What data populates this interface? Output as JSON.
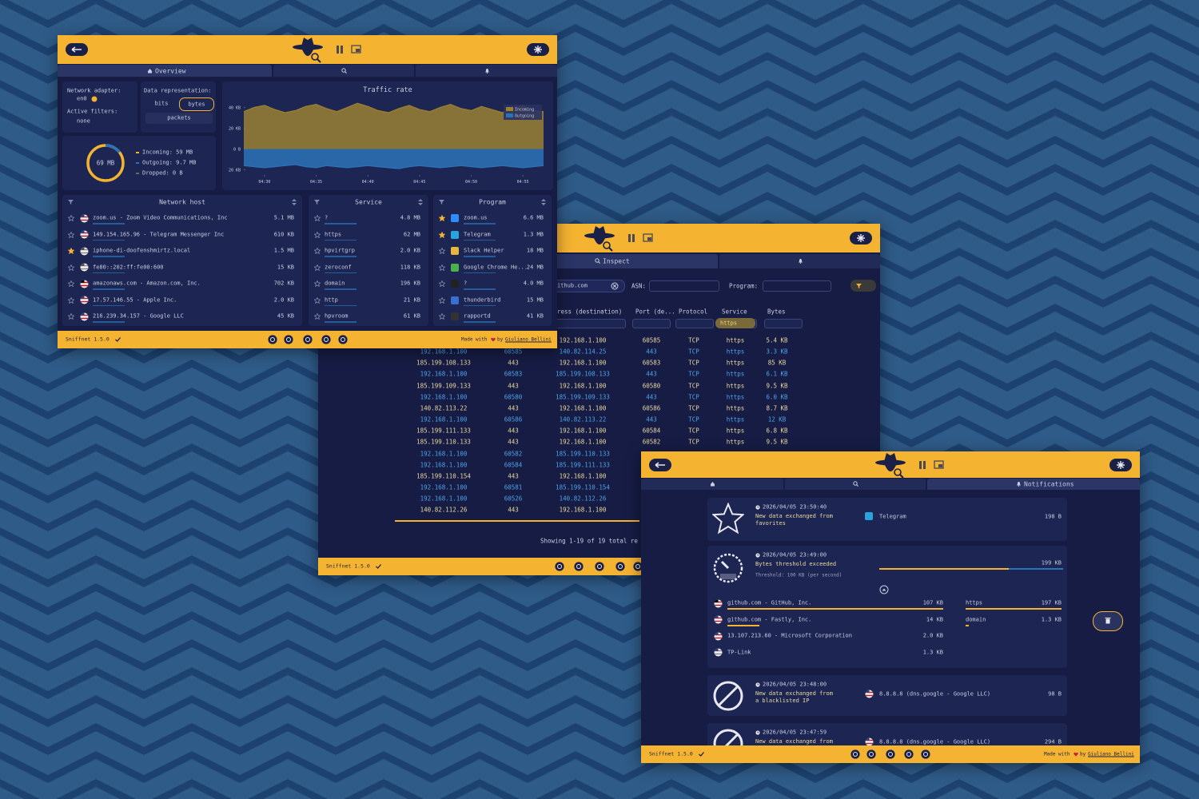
{
  "chart_data": {
    "type": "area",
    "title": "Traffic rate",
    "x": [
      268,
      269,
      270,
      271,
      272,
      273,
      274,
      275,
      276,
      277,
      278,
      279,
      280,
      281,
      282,
      283,
      284,
      285,
      286,
      287,
      288,
      289,
      290,
      291,
      292,
      293,
      294,
      295,
      296,
      297
    ],
    "xlim": [
      268,
      297
    ],
    "xticks": [
      {
        "value": 270,
        "label": "04:30"
      },
      {
        "value": 275,
        "label": "04:35"
      },
      {
        "value": 280,
        "label": "04:40"
      },
      {
        "value": 285,
        "label": "04:45"
      },
      {
        "value": 290,
        "label": "04:50"
      },
      {
        "value": 295,
        "label": "04:55"
      }
    ],
    "ylim": [
      -25,
      45
    ],
    "yticks": [
      {
        "value": 40,
        "label": "40 KB"
      },
      {
        "value": 20,
        "label": "20 KB"
      },
      {
        "value": 0,
        "label": "0 B"
      },
      {
        "value": -20,
        "label": "20 KB"
      }
    ],
    "legend": "upper right",
    "series": [
      {
        "name": "Incoming",
        "color": "#9a8132",
        "values": [
          36,
          40,
          42,
          38,
          35,
          37,
          41,
          43,
          39,
          36,
          40,
          44,
          41,
          37,
          35,
          39,
          42,
          38,
          36,
          40,
          43,
          39,
          37,
          41,
          38,
          35,
          39,
          42,
          37,
          36
        ]
      },
      {
        "name": "Outgoing",
        "color": "#2b73b8",
        "values": [
          -16,
          -17,
          -18,
          -17,
          -16,
          -15,
          -17,
          -18,
          -16,
          -17,
          -18,
          -17,
          -16,
          -17,
          -18,
          -19,
          -17,
          -16,
          -17,
          -18,
          -17,
          -16,
          -17,
          -18,
          -17,
          -16,
          -17,
          -18,
          -17,
          -16
        ]
      }
    ]
  },
  "overview": {
    "tab": "Overview",
    "adapter_label": "Network adapter:",
    "adapter": "en0",
    "filters_label": "Active filters:",
    "filters": "none",
    "representation_label": "Data representation:",
    "representation": [
      "bits",
      "bytes",
      "packets"
    ],
    "total": "69 MB",
    "totals": [
      "Incoming: 59 MB",
      "Outgoing: 9.7 MB",
      "Dropped: 0 B"
    ],
    "tables": [
      {
        "header": "Network host",
        "rows": [
          {
            "name": "zoom.us - Zoom Video Communications, Inc",
            "value": "5.1 MB"
          },
          {
            "name": "149.154.165.96 - Telegram Messenger Inc",
            "value": "610 KB"
          },
          {
            "name": "iphone-di-doofenshmirtz.local",
            "value": "1.5 MB",
            "favorite": true
          },
          {
            "name": "fe80::202:ff:fe00:600",
            "value": "15 KB"
          },
          {
            "name": "amazonaws.com - Amazon.com, Inc.",
            "value": "702 KB"
          },
          {
            "name": "17.57.146.55 - Apple Inc.",
            "value": "2.0 KB"
          },
          {
            "name": "216.239.34.157 - Google LLC",
            "value": "45 KB"
          }
        ]
      },
      {
        "header": "Service",
        "rows": [
          {
            "name": "?",
            "value": "4.8 MB"
          },
          {
            "name": "https",
            "value": "62 MB"
          },
          {
            "name": "hpvirtgrp",
            "value": "2.0 KB"
          },
          {
            "name": "zeroconf",
            "value": "118 KB"
          },
          {
            "name": "domain",
            "value": "196 KB"
          },
          {
            "name": "http",
            "value": "21 KB"
          },
          {
            "name": "hpvroom",
            "value": "61 KB"
          }
        ]
      },
      {
        "header": "Program",
        "rows": [
          {
            "name": "zoom.us",
            "value": "6.6 MB",
            "favorite": true
          },
          {
            "name": "Telegram",
            "value": "1.3 MB",
            "favorite": true
          },
          {
            "name": "Slack Helper",
            "value": "18 MB"
          },
          {
            "name": "Google Chrome He...",
            "value": "24 MB"
          },
          {
            "name": "?",
            "value": "4.0 MB"
          },
          {
            "name": "thunderbird",
            "value": "15 MB"
          },
          {
            "name": "rapportd",
            "value": "41 KB"
          }
        ]
      }
    ],
    "footer": {
      "version": "Sniffnet 1.5.0",
      "made_with": "Made with",
      "by": "by",
      "author": "Giuliano Bellini"
    }
  },
  "inspect": {
    "tab": "Inspect",
    "search": "ithub.com",
    "asn_label": "ASN:",
    "program_label": "Program:",
    "columns": [
      "ress (destination)",
      "Port (de...",
      "Protocol",
      "Service",
      "Bytes"
    ],
    "service_filter": "https",
    "rows": [
      [
        null,
        null,
        "192.168.1.100",
        "60585",
        "TCP",
        "https",
        "5.4 KB"
      ],
      [
        "192.168.1.100",
        "60585",
        "140.82.114.25",
        "443",
        "TCP",
        "https",
        "3.3 KB"
      ],
      [
        "185.199.108.133",
        "443",
        "192.168.1.100",
        "60583",
        "TCP",
        "https",
        "85 KB"
      ],
      [
        "192.168.1.100",
        "60583",
        "185.199.108.133",
        "443",
        "TCP",
        "https",
        "6.1 KB"
      ],
      [
        "185.199.109.133",
        "443",
        "192.168.1.100",
        "60580",
        "TCP",
        "https",
        "9.5 KB"
      ],
      [
        "192.168.1.100",
        "60580",
        "185.199.109.133",
        "443",
        "TCP",
        "https",
        "6.0 KB"
      ],
      [
        "140.82.113.22",
        "443",
        "192.168.1.100",
        "60586",
        "TCP",
        "https",
        "8.7 KB"
      ],
      [
        "192.168.1.100",
        "60586",
        "140.82.113.22",
        "443",
        "TCP",
        "https",
        "12 KB"
      ],
      [
        "185.199.111.133",
        "443",
        "192.168.1.100",
        "60584",
        "TCP",
        "https",
        "6.8 KB"
      ],
      [
        "185.199.110.133",
        "443",
        "192.168.1.100",
        "60582",
        "TCP",
        "https",
        "9.5 KB"
      ],
      [
        "192.168.1.100",
        "60582",
        "185.199.110.133",
        null,
        null,
        null,
        null
      ],
      [
        "192.168.1.100",
        "60584",
        "185.199.111.133",
        null,
        null,
        null,
        null
      ],
      [
        "185.199.110.154",
        "443",
        "192.168.1.100",
        null,
        null,
        null,
        null
      ],
      [
        "192.168.1.100",
        "60581",
        "185.199.110.154",
        null,
        null,
        null,
        null
      ],
      [
        "192.168.1.100",
        "60526",
        "140.82.112.26",
        null,
        null,
        null,
        null
      ],
      [
        "140.82.112.26",
        "443",
        "192.168.1.100",
        null,
        null,
        null,
        null
      ]
    ],
    "status": "Showing 1-19 of 19 total re",
    "footer": {
      "version": "Sniffnet 1.5.0"
    }
  },
  "notifications": {
    "tab": "Notifications",
    "items": [
      {
        "time": "2026/04/05 23:50:40",
        "message": "New data exchanged from favorites",
        "entity": "Telegram",
        "value": "198 B"
      },
      {
        "time": "2026/04/05 23:49:00",
        "message": "Bytes threshold exceeded",
        "threshold": "Threshold: 100 KB (per second)",
        "value": "199 KB",
        "hosts": [
          [
            "github.com - GitHub, Inc.",
            "107 KB"
          ],
          [
            "github.com - Fastly, Inc.",
            "14 KB"
          ],
          [
            "13.107.213.60 - Microsoft Corporation",
            "2.0 KB"
          ],
          [
            "TP-Link",
            "1.3 KB"
          ]
        ],
        "services": [
          [
            "https",
            "197 KB"
          ],
          [
            "domain",
            "1.3 KB"
          ]
        ]
      },
      {
        "time": "2026/04/05 23:48:00",
        "message": "New data exchanged from a blacklisted IP",
        "entity": "8.8.8.8 (dns.google - Google LLC)",
        "value": "98 B"
      },
      {
        "time": "2026/04/05 23:47:59",
        "message": "New data exchanged from a",
        "entity": "8.8.8.8 (dns.google - Google LLC)",
        "value": "294 B"
      }
    ],
    "footer": {
      "version": "Sniffnet 1.5.0",
      "made_with": "Made with",
      "by": "by",
      "author": "Giuliano Bellini"
    }
  }
}
